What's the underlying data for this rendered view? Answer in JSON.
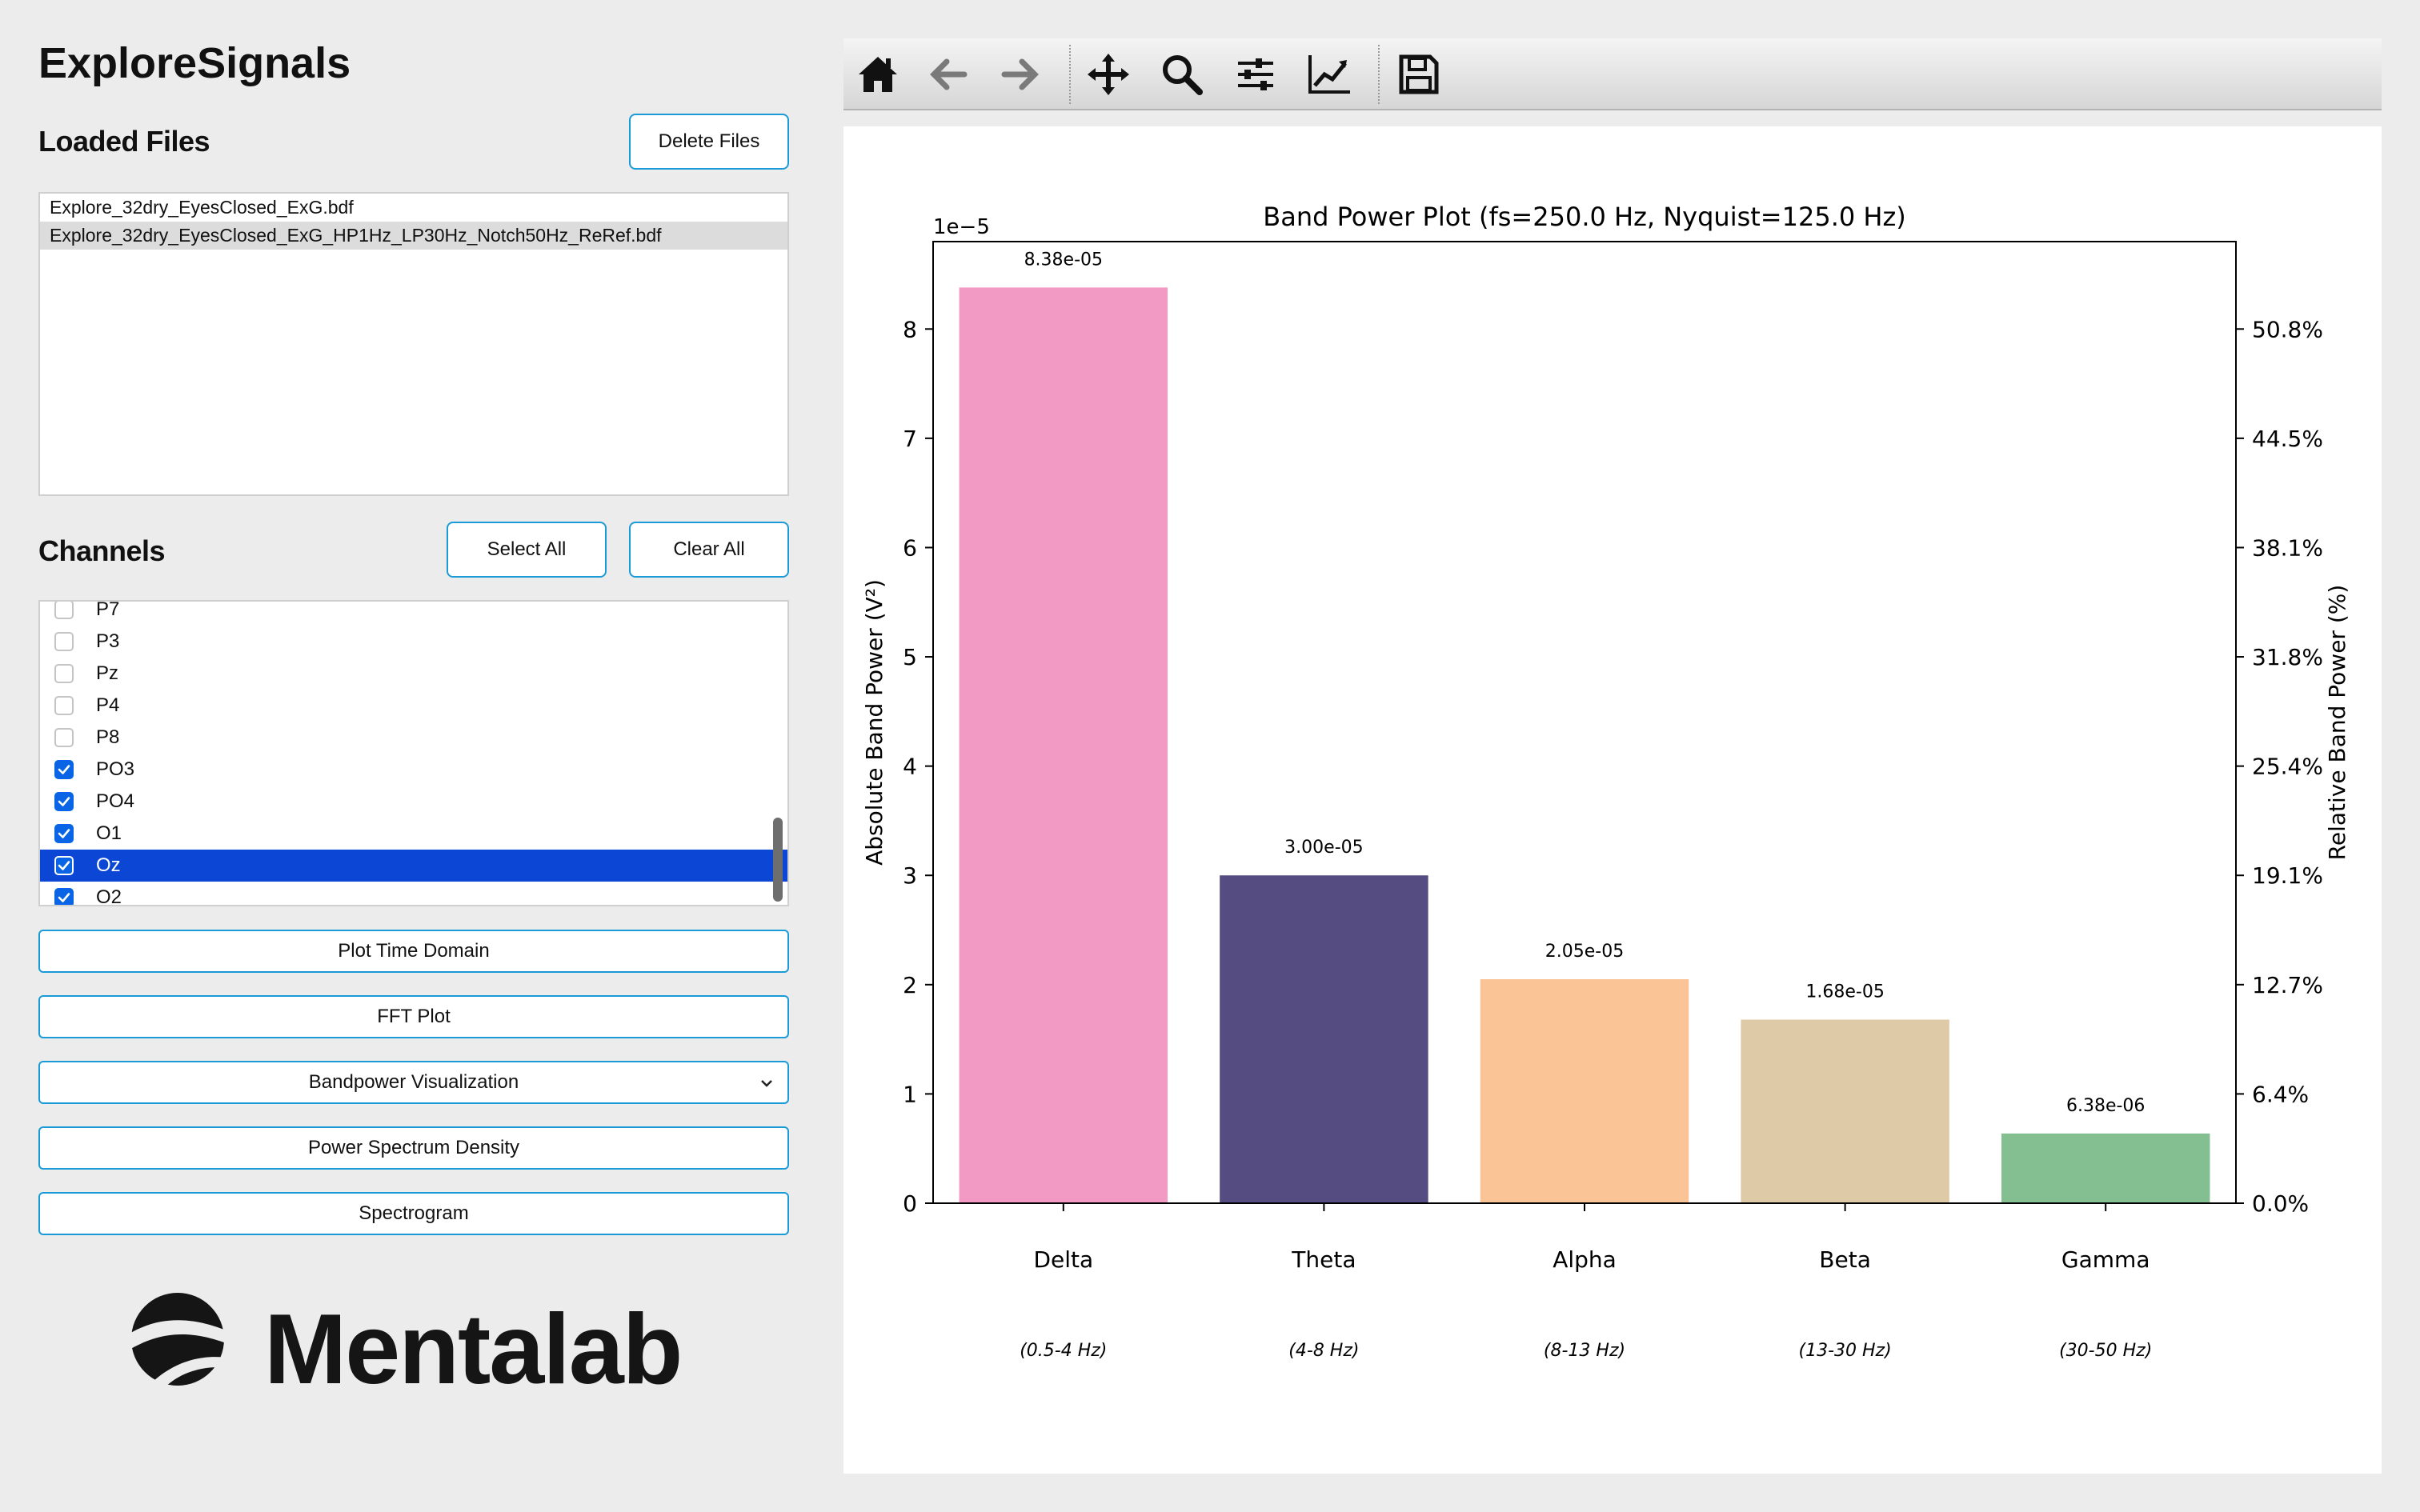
{
  "app": {
    "title": "ExploreSignals"
  },
  "files": {
    "heading": "Loaded Files",
    "delete_label": "Delete Files",
    "items": [
      "Explore_32dry_EyesClosed_ExG.bdf",
      "Explore_32dry_EyesClosed_ExG_HP1Hz_LP30Hz_Notch50Hz_ReRef.bdf"
    ],
    "selected_index": 1
  },
  "channels": {
    "heading": "Channels",
    "select_all_label": "Select All",
    "clear_all_label": "Clear All",
    "items": [
      {
        "label": "P7",
        "checked": false
      },
      {
        "label": "P3",
        "checked": false
      },
      {
        "label": "Pz",
        "checked": false
      },
      {
        "label": "P4",
        "checked": false
      },
      {
        "label": "P8",
        "checked": false
      },
      {
        "label": "PO3",
        "checked": true
      },
      {
        "label": "PO4",
        "checked": true
      },
      {
        "label": "O1",
        "checked": true
      },
      {
        "label": "Oz",
        "checked": true,
        "selected": true
      },
      {
        "label": "O2",
        "checked": true
      }
    ]
  },
  "actions": {
    "time_domain": "Plot Time Domain",
    "fft": "FFT Plot",
    "bandpower": "Bandpower Visualization",
    "psd": "Power Spectrum Density",
    "spectrogram": "Spectrogram"
  },
  "logo": {
    "text": "Mentalab"
  },
  "toolbar": {
    "icons": [
      "home-icon",
      "back-arrow-icon",
      "forward-arrow-icon",
      "pan-icon",
      "zoom-icon",
      "subplots-config-icon",
      "edit-axis-icon",
      "save-icon"
    ]
  },
  "chart_data": {
    "type": "bar",
    "title": "Band Power Plot (fs=250.0 Hz, Nyquist=125.0 Hz)",
    "ylabel": "Absolute Band Power (V²)",
    "ylabel_right": "Relative Band Power (%)",
    "y_offset_label": "1e−5",
    "categories": [
      "Delta",
      "Theta",
      "Alpha",
      "Beta",
      "Gamma"
    ],
    "ranges": [
      "(0.5-4 Hz)",
      "(4-8 Hz)",
      "(8-13 Hz)",
      "(13-30 Hz)",
      "(30-50 Hz)"
    ],
    "values": [
      8.38e-05,
      3e-05,
      2.05e-05,
      1.68e-05,
      6.38e-06
    ],
    "value_labels": [
      "8.38e-05",
      "3.00e-05",
      "2.05e-05",
      "1.68e-05",
      "6.38e-06"
    ],
    "colors": [
      "#f39ac4",
      "#554d82",
      "#fbc497",
      "#dfcaa7",
      "#84bf92"
    ],
    "ylim": [
      0,
      8.8e-05
    ],
    "yticks": [
      0,
      1,
      2,
      3,
      4,
      5,
      6,
      7,
      8
    ],
    "ytick_labels": [
      "0",
      "1",
      "2",
      "3",
      "4",
      "5",
      "6",
      "7",
      "8"
    ],
    "right_tick_labels": [
      "0.0%",
      "6.4%",
      "12.7%",
      "19.1%",
      "25.4%",
      "31.8%",
      "38.1%",
      "44.5%",
      "50.8%"
    ],
    "grid": false
  }
}
